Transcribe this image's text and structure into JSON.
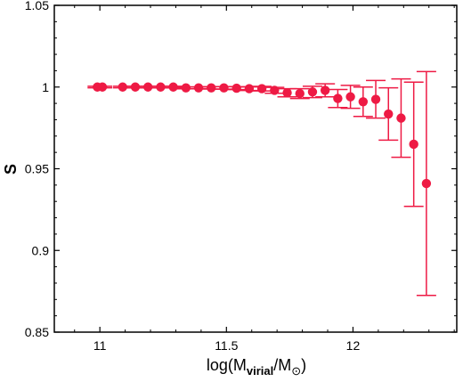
{
  "chart_data": {
    "type": "scatter",
    "title": "",
    "xlabel": "log(M_virial/M_⊙)",
    "xlabel_parts": {
      "main": "log(M",
      "sub": "virial",
      "mid": "/M",
      "sym": "⊙",
      "end": ")"
    },
    "ylabel": "S",
    "xlim": [
      10.82,
      12.41
    ],
    "ylim": [
      0.85,
      1.05
    ],
    "xticks": [
      11,
      11.5,
      12
    ],
    "xtick_labels": [
      "11",
      "11.5",
      "12"
    ],
    "yticks": [
      0.85,
      0.9,
      0.95,
      1,
      1.05
    ],
    "ytick_labels": [
      "0.85",
      "0.9",
      "0.95",
      "1",
      "1.05"
    ],
    "grid": false,
    "color": "#ee1a44",
    "series": [
      {
        "points": [
          {
            "x": 10.99,
            "y": 1.0,
            "err": 0.0005
          },
          {
            "x": 11.01,
            "y": 1.0,
            "err": 0.0005
          },
          {
            "x": 11.09,
            "y": 1.0,
            "err": 0.0005
          },
          {
            "x": 11.14,
            "y": 1.0,
            "err": 0.0005
          },
          {
            "x": 11.19,
            "y": 1.0,
            "err": 0.0005
          },
          {
            "x": 11.24,
            "y": 1.0,
            "err": 0.0005
          },
          {
            "x": 11.29,
            "y": 1.0,
            "err": 0.0005
          },
          {
            "x": 11.34,
            "y": 0.9995,
            "err": 0.0006
          },
          {
            "x": 11.39,
            "y": 0.9995,
            "err": 0.0006
          },
          {
            "x": 11.44,
            "y": 0.9995,
            "err": 0.0007
          },
          {
            "x": 11.49,
            "y": 0.9995,
            "err": 0.0008
          },
          {
            "x": 11.54,
            "y": 0.9993,
            "err": 0.0009
          },
          {
            "x": 11.59,
            "y": 0.999,
            "err": 0.0011
          },
          {
            "x": 11.64,
            "y": 0.999,
            "err": 0.0014
          },
          {
            "x": 11.69,
            "y": 0.998,
            "err": 0.0018
          },
          {
            "x": 11.74,
            "y": 0.9965,
            "err": 0.0025
          },
          {
            "x": 11.79,
            "y": 0.996,
            "err": 0.003
          },
          {
            "x": 11.84,
            "y": 0.997,
            "err": 0.0035
          },
          {
            "x": 11.89,
            "y": 0.998,
            "err": 0.004
          },
          {
            "x": 11.94,
            "y": 0.993,
            "err": 0.0055
          },
          {
            "x": 11.99,
            "y": 0.994,
            "err": 0.007
          },
          {
            "x": 12.04,
            "y": 0.991,
            "err": 0.009
          },
          {
            "x": 12.09,
            "y": 0.9925,
            "err": 0.0115
          },
          {
            "x": 12.14,
            "y": 0.9835,
            "err": 0.016
          },
          {
            "x": 12.19,
            "y": 0.981,
            "err": 0.024
          },
          {
            "x": 12.24,
            "y": 0.965,
            "err": 0.038
          },
          {
            "x": 12.29,
            "y": 0.941,
            "err": 0.0685
          }
        ]
      }
    ]
  }
}
